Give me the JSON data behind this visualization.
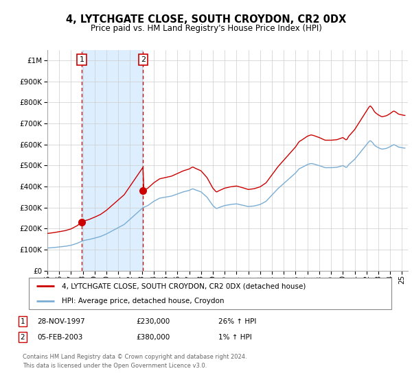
{
  "title": "4, LYTCHGATE CLOSE, SOUTH CROYDON, CR2 0DX",
  "subtitle": "Price paid vs. HM Land Registry's House Price Index (HPI)",
  "sale1_year": 1997.91,
  "sale1_price": 230000,
  "sale2_year": 2003.09,
  "sale2_price": 380000,
  "legend_line1": "4, LYTCHGATE CLOSE, SOUTH CROYDON, CR2 0DX (detached house)",
  "legend_line2": "HPI: Average price, detached house, Croydon",
  "table_rows": [
    [
      "1",
      "28-NOV-1997",
      "£230,000",
      "26% ↑ HPI"
    ],
    [
      "2",
      "05-FEB-2003",
      "£380,000",
      "1% ↑ HPI"
    ]
  ],
  "footnote1": "Contains HM Land Registry data © Crown copyright and database right 2024.",
  "footnote2": "This data is licensed under the Open Government Licence v3.0.",
  "hpi_color": "#7aadd4",
  "price_color": "#cc0000",
  "shade_color": "#ddeeff",
  "vline_color": "#cc0000",
  "box_color": "#cc0000",
  "ylim": [
    0,
    1050000
  ],
  "xlim_start": 1995.0,
  "xlim_end": 2025.5,
  "yticks": [
    0,
    100000,
    200000,
    300000,
    400000,
    500000,
    600000,
    700000,
    800000,
    900000,
    1000000
  ]
}
